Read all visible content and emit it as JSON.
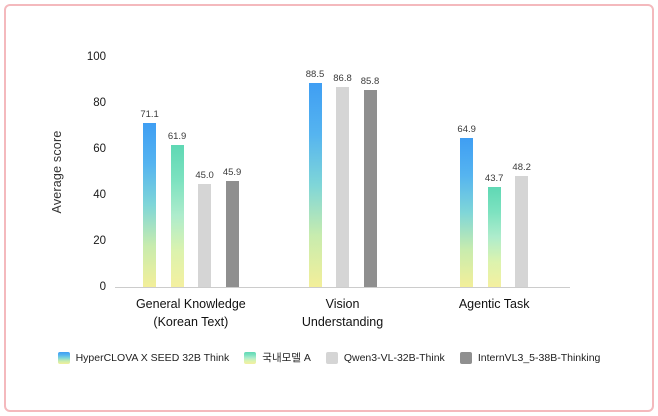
{
  "frame": {
    "border_color": "#f4b9bd",
    "background": "#ffffff"
  },
  "chart_data": {
    "type": "bar",
    "title": "",
    "ylabel": "Average score",
    "xlabel": "",
    "ylim": [
      0,
      100
    ],
    "yticks": [
      0,
      20,
      40,
      60,
      80,
      100
    ],
    "grid": false,
    "legend_position": "bottom",
    "categories": [
      "General Knowledge (Korean Text)",
      "Vision Understanding",
      "Agentic Task"
    ],
    "category_label_lines": [
      [
        "General Knowledge",
        "(Korean Text)"
      ],
      [
        "Vision",
        "Understanding"
      ],
      [
        "Agentic Task"
      ]
    ],
    "series": [
      {
        "name": "HyperCLOVA X SEED 32B Think",
        "colors": [
          "#3f9ef3",
          "#55b4f0",
          "#7fd6d8",
          "#c8ecae",
          "#f3ef9a"
        ],
        "values": [
          71.1,
          88.5,
          64.9
        ]
      },
      {
        "name": "국내모델 A",
        "colors": [
          "#5fd8b4",
          "#7de2c0",
          "#aeeccc",
          "#dcf3ae",
          "#f4f0a0"
        ],
        "values": [
          61.9,
          null,
          43.7
        ]
      },
      {
        "name": "Qwen3-VL-32B-Think",
        "colors": [
          "#d5d5d5"
        ],
        "values": [
          45.0,
          86.8,
          48.2
        ]
      },
      {
        "name": "InternVL3_5-38B-Thinking",
        "colors": [
          "#8f8f8f"
        ],
        "values": [
          45.9,
          85.8,
          null
        ]
      }
    ]
  }
}
